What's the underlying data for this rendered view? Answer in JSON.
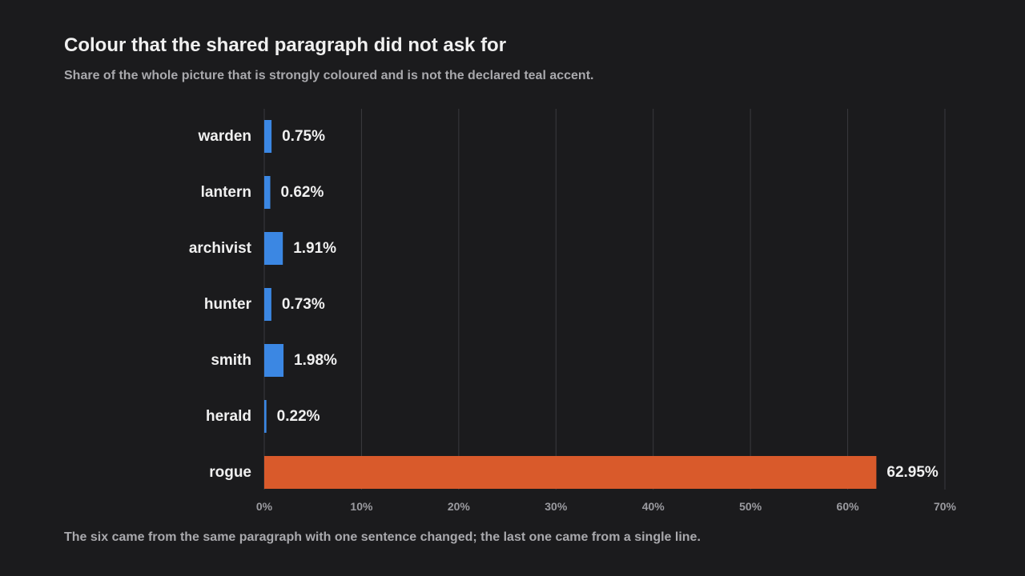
{
  "title": "Colour that the shared paragraph did not ask for",
  "subtitle": "Share of the whole picture that is strongly coloured and is not the declared teal accent.",
  "footnote": "The six came from the same paragraph with one sentence changed; the last one came from a single line.",
  "colors": {
    "background": "#1b1b1d",
    "bar_normal": "#3b87e3",
    "bar_highlight": "#d95a2b",
    "grid": "#3a3a3e",
    "text": "#f0f0f0",
    "muted_text": "#a9a9ad"
  },
  "chart_data": {
    "type": "bar",
    "orientation": "horizontal",
    "categories": [
      "warden",
      "lantern",
      "archivist",
      "hunter",
      "smith",
      "herald",
      "rogue"
    ],
    "values": [
      0.75,
      0.62,
      1.91,
      0.73,
      1.98,
      0.22,
      62.95
    ],
    "value_labels": [
      "0.75%",
      "0.62%",
      "1.91%",
      "0.73%",
      "1.98%",
      "0.22%",
      "62.95%"
    ],
    "highlight": [
      "rogue"
    ],
    "xlim": [
      0,
      70
    ],
    "xticks": [
      0,
      10,
      20,
      30,
      40,
      50,
      60,
      70
    ],
    "xtick_labels": [
      "0%",
      "10%",
      "20%",
      "30%",
      "40%",
      "50%",
      "60%",
      "70%"
    ],
    "grid": true,
    "xlabel": "",
    "ylabel": ""
  }
}
